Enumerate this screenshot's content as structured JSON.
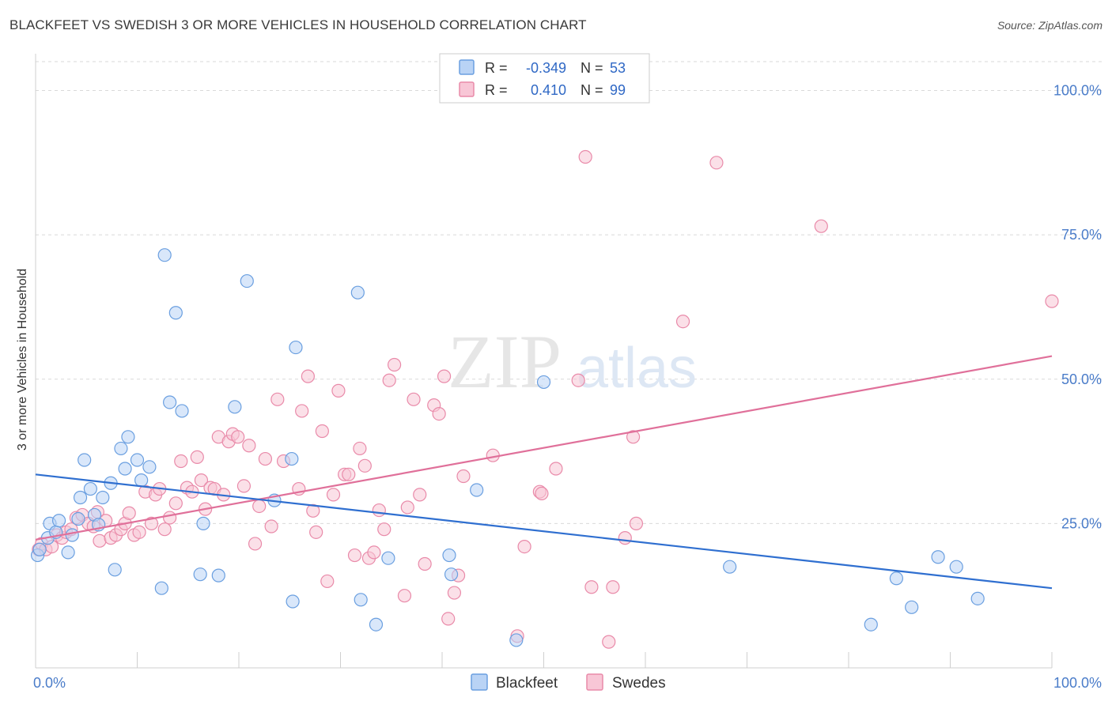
{
  "title": "BLACKFEET VS SWEDISH 3 OR MORE VEHICLES IN HOUSEHOLD CORRELATION CHART",
  "source": "Source: ZipAtlas.com",
  "watermark": {
    "zip": "ZIP",
    "atlas": "atlas"
  },
  "colors": {
    "blackfeet_fill": "#b9d3f5",
    "blackfeet_stroke": "#6a9fe0",
    "blackfeet_line": "#2f6fd0",
    "swedes_fill": "#f8c6d6",
    "swedes_stroke": "#e98aa9",
    "swedes_line": "#e0709a",
    "tick_label": "#4a7cc9",
    "grid": "#d9d9d9"
  },
  "legend": {
    "rows": [
      {
        "r_label": "R =",
        "r_value": "-0.349",
        "n_label": "N =",
        "n_value": "53"
      },
      {
        "r_label": "R =",
        "r_value": "0.410",
        "n_label": "N =",
        "n_value": "99"
      }
    ]
  },
  "chart_data": {
    "type": "scatter",
    "title": "BLACKFEET VS SWEDISH 3 OR MORE VEHICLES IN HOUSEHOLD CORRELATION CHART",
    "xlabel": "",
    "ylabel": "3 or more Vehicles in Household",
    "xlim": [
      0,
      100
    ],
    "ylim": [
      0,
      105
    ],
    "x_tick_labels": [
      {
        "value": 0,
        "label": "0.0%"
      },
      {
        "value": 100,
        "label": "100.0%"
      }
    ],
    "y_tick_labels": [
      {
        "value": 25,
        "label": "25.0%"
      },
      {
        "value": 50,
        "label": "50.0%"
      },
      {
        "value": 75,
        "label": "75.0%"
      },
      {
        "value": 100,
        "label": "100.0%"
      }
    ],
    "grid": true,
    "legend_position": "top-center",
    "series": [
      {
        "name": "Blackfeet",
        "r": -0.349,
        "n": 53,
        "trend": {
          "x": [
            0,
            100
          ],
          "y": [
            33.5,
            13.8
          ]
        },
        "points": [
          [
            0.2,
            19.5
          ],
          [
            0.4,
            20.5
          ],
          [
            1.2,
            22.5
          ],
          [
            1.4,
            25
          ],
          [
            2,
            23.5
          ],
          [
            2.3,
            25.5
          ],
          [
            3.2,
            20
          ],
          [
            3.6,
            23
          ],
          [
            4.2,
            25.8
          ],
          [
            4.4,
            29.5
          ],
          [
            4.8,
            36
          ],
          [
            5.4,
            31
          ],
          [
            5.8,
            26.5
          ],
          [
            6.2,
            24.8
          ],
          [
            6.6,
            29.5
          ],
          [
            7.4,
            32
          ],
          [
            7.8,
            17
          ],
          [
            8.4,
            38
          ],
          [
            8.8,
            34.5
          ],
          [
            9.1,
            40
          ],
          [
            10,
            36
          ],
          [
            10.4,
            32.5
          ],
          [
            11.2,
            34.8
          ],
          [
            12.4,
            13.8
          ],
          [
            12.7,
            71.5
          ],
          [
            13.2,
            46
          ],
          [
            13.8,
            61.5
          ],
          [
            14.4,
            44.5
          ],
          [
            16.2,
            16.2
          ],
          [
            16.5,
            25
          ],
          [
            18,
            16
          ],
          [
            19.6,
            45.2
          ],
          [
            20.8,
            67
          ],
          [
            23.5,
            29
          ],
          [
            25.2,
            36.2
          ],
          [
            25.3,
            11.5
          ],
          [
            25.6,
            55.5
          ],
          [
            31.7,
            65
          ],
          [
            32,
            11.8
          ],
          [
            33.5,
            7.5
          ],
          [
            34.7,
            19
          ],
          [
            40.7,
            19.5
          ],
          [
            40.9,
            16.2
          ],
          [
            43.4,
            30.8
          ],
          [
            47.3,
            4.8
          ],
          [
            50,
            49.5
          ],
          [
            68.3,
            17.5
          ],
          [
            82.2,
            7.5
          ],
          [
            84.7,
            15.5
          ],
          [
            86.2,
            10.5
          ],
          [
            88.8,
            19.2
          ],
          [
            90.6,
            17.5
          ],
          [
            92.7,
            12
          ]
        ]
      },
      {
        "name": "Swedes",
        "r": 0.41,
        "n": 99,
        "trend": {
          "x": [
            0,
            100
          ],
          "y": [
            22.2,
            54
          ]
        },
        "points": [
          [
            0.3,
            20.5
          ],
          [
            0.6,
            21.5
          ],
          [
            1,
            20.5
          ],
          [
            1.6,
            21
          ],
          [
            2.1,
            23
          ],
          [
            2.6,
            22.5
          ],
          [
            3,
            23.5
          ],
          [
            3.5,
            24
          ],
          [
            4,
            26
          ],
          [
            4.6,
            26.5
          ],
          [
            5.2,
            25
          ],
          [
            5.7,
            24.5
          ],
          [
            6.1,
            27
          ],
          [
            6.3,
            22
          ],
          [
            6.9,
            25.5
          ],
          [
            7.4,
            22.5
          ],
          [
            7.9,
            23
          ],
          [
            8.4,
            24
          ],
          [
            8.8,
            25
          ],
          [
            9.2,
            26.8
          ],
          [
            9.7,
            23
          ],
          [
            10.2,
            23.5
          ],
          [
            10.8,
            30.5
          ],
          [
            11.4,
            25
          ],
          [
            11.8,
            30
          ],
          [
            12.2,
            31
          ],
          [
            12.7,
            24
          ],
          [
            13.2,
            26
          ],
          [
            13.8,
            28.5
          ],
          [
            14.3,
            35.8
          ],
          [
            14.9,
            31.2
          ],
          [
            15.4,
            30.5
          ],
          [
            15.9,
            36.5
          ],
          [
            16.3,
            32.5
          ],
          [
            16.7,
            27.5
          ],
          [
            17.2,
            31.2
          ],
          [
            17.6,
            31
          ],
          [
            18,
            40
          ],
          [
            18.5,
            30
          ],
          [
            19,
            39.2
          ],
          [
            19.4,
            40.5
          ],
          [
            19.9,
            40
          ],
          [
            20.5,
            31.5
          ],
          [
            21,
            38.5
          ],
          [
            21.6,
            21.5
          ],
          [
            22,
            28
          ],
          [
            22.6,
            36.2
          ],
          [
            23.2,
            24.5
          ],
          [
            23.8,
            46.5
          ],
          [
            24.4,
            35.8
          ],
          [
            25.9,
            31
          ],
          [
            26.2,
            44.5
          ],
          [
            26.8,
            50.5
          ],
          [
            27.3,
            27.2
          ],
          [
            27.6,
            23.5
          ],
          [
            28.2,
            41
          ],
          [
            28.7,
            15
          ],
          [
            29.3,
            30
          ],
          [
            29.8,
            48
          ],
          [
            30.4,
            33.5
          ],
          [
            30.8,
            33.5
          ],
          [
            31.4,
            19.5
          ],
          [
            31.9,
            38
          ],
          [
            32.4,
            35
          ],
          [
            32.8,
            19
          ],
          [
            33.3,
            20
          ],
          [
            33.8,
            27.3
          ],
          [
            34.3,
            24
          ],
          [
            34.8,
            49.8
          ],
          [
            35.3,
            52.5
          ],
          [
            36.3,
            12.5
          ],
          [
            36.6,
            27.8
          ],
          [
            37.2,
            46.5
          ],
          [
            37.8,
            30
          ],
          [
            38.3,
            18
          ],
          [
            39.2,
            45.5
          ],
          [
            39.7,
            44
          ],
          [
            40.2,
            50.5
          ],
          [
            40.6,
            8.5
          ],
          [
            41.2,
            13
          ],
          [
            41.6,
            16
          ],
          [
            42.1,
            33.2
          ],
          [
            45,
            36.8
          ],
          [
            47.4,
            5.5
          ],
          [
            48.1,
            21
          ],
          [
            49.6,
            30.5
          ],
          [
            49.8,
            30.2
          ],
          [
            51.2,
            34.5
          ],
          [
            53.4,
            49.8
          ],
          [
            54.1,
            88.5
          ],
          [
            54.7,
            14
          ],
          [
            56.4,
            4.5
          ],
          [
            56.8,
            14
          ],
          [
            58,
            22.5
          ],
          [
            58.8,
            40
          ],
          [
            59.1,
            25
          ],
          [
            63.7,
            60
          ],
          [
            67,
            87.5
          ],
          [
            77.3,
            76.5
          ],
          [
            100,
            63.5
          ]
        ]
      }
    ]
  },
  "bottom_legend": [
    {
      "label": "Blackfeet"
    },
    {
      "label": "Swedes"
    }
  ]
}
